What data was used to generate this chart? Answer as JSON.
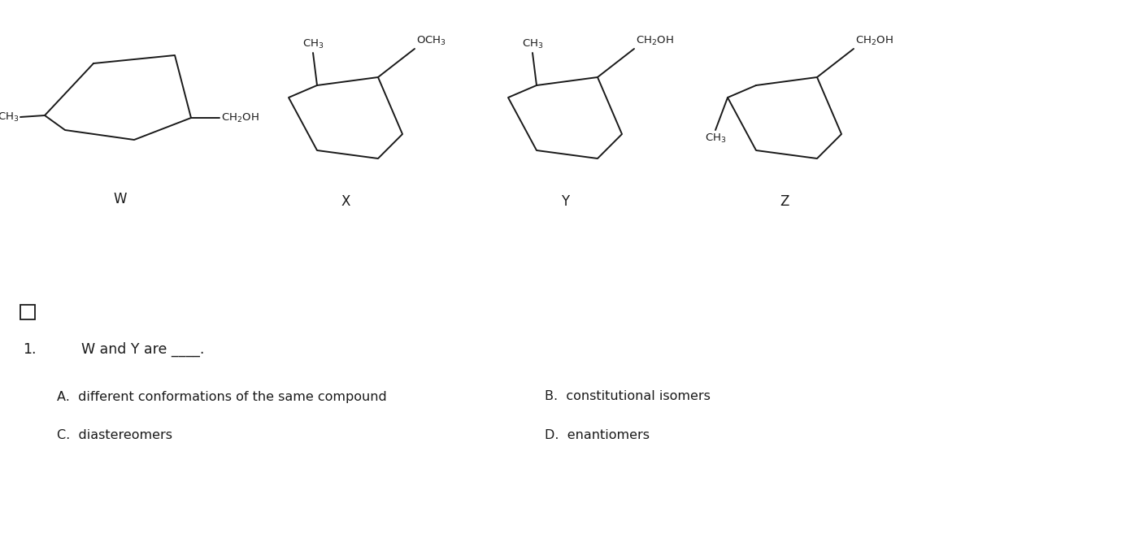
{
  "background_color": "#ffffff",
  "text_color": "#1a1a1a",
  "question_text": "1.",
  "question_body": "W and Y are ____.",
  "answer_A": "A.  different conformations of the same compound",
  "answer_B": "B.  constitutional isomers",
  "answer_C": "C.  diastereomers",
  "answer_D": "D.  enantiomers",
  "label_W": "W",
  "label_X": "X",
  "label_Y": "Y",
  "label_Z": "Z"
}
